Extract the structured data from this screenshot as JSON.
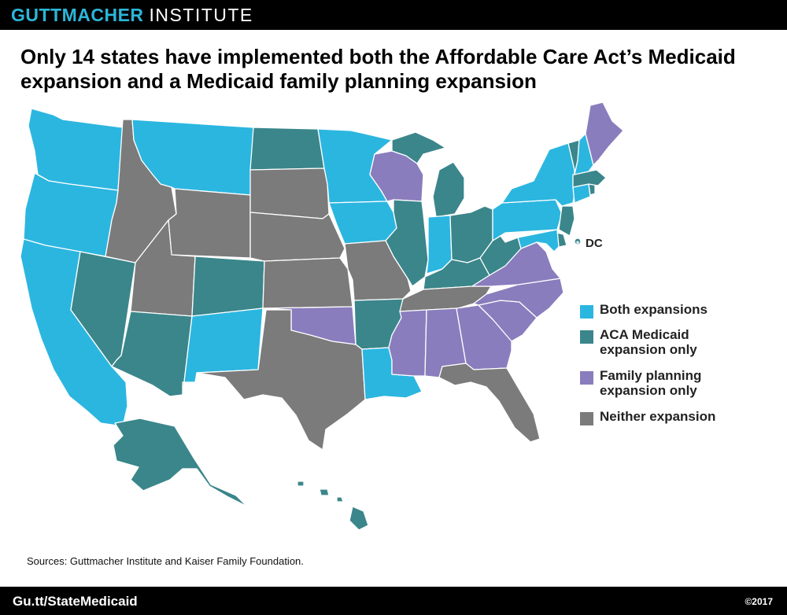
{
  "header": {
    "brand_bold": "GUTTMACHER",
    "brand_light": "INSTITUTE"
  },
  "title": "Only 14 states have implemented both the Affordable Care Act’s Medicaid expansion and a Medicaid family planning expansion",
  "colors": {
    "both": "#2bb6e0",
    "aca": "#3a868b",
    "fp": "#8a7dbd",
    "neither": "#7b7b7b"
  },
  "legend": [
    {
      "key": "both",
      "label": "Both expansions"
    },
    {
      "key": "aca",
      "label": "ACA Medicaid expansion only"
    },
    {
      "key": "fp",
      "label": "Family planning expansion only"
    },
    {
      "key": "neither",
      "label": "Neither expansion"
    }
  ],
  "dc_label": "DC",
  "states": {
    "both": [
      "WA",
      "OR",
      "CA",
      "MT",
      "NM",
      "MN",
      "IA",
      "IN",
      "LA",
      "PA",
      "NY",
      "NH",
      "CT",
      "MD"
    ],
    "aca": [
      "NV",
      "AZ",
      "CO",
      "ND",
      "AR",
      "IL",
      "MI",
      "OH",
      "KY",
      "WV",
      "NJ",
      "DE",
      "VT",
      "MA",
      "RI",
      "AK",
      "HI",
      "DC"
    ],
    "fp": [
      "WI",
      "OK",
      "VA",
      "NC",
      "SC",
      "GA",
      "AL",
      "MS",
      "ME"
    ],
    "neither": [
      "ID",
      "WY",
      "UT",
      "SD",
      "NE",
      "KS",
      "MO",
      "TX",
      "TN",
      "FL"
    ]
  },
  "source": "Sources: Guttmacher Institute and Kaiser Family Foundation.",
  "footer": {
    "url": "Gu.tt/StateMedicaid",
    "copyright": "©2017"
  }
}
